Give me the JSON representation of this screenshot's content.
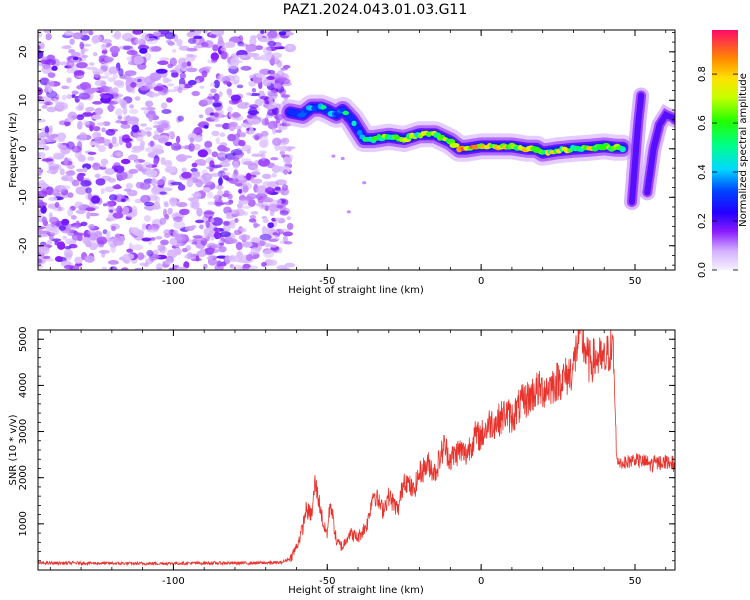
{
  "title": "PAZ1.2024.043.01.03.G11",
  "colors": {
    "snr_line": "#e8332d",
    "colormap": [
      "#f2f2ff",
      "#d8b6ff",
      "#a44dff",
      "#7000ff",
      "#0000ff",
      "#00e5ff",
      "#00ff33",
      "#ffff00",
      "#ff7f00",
      "#ff0066"
    ]
  },
  "chart_data": [
    {
      "type": "heatmap",
      "title": "",
      "xlabel": "Height of straight line (km)",
      "ylabel": "Frequency (Hz)",
      "xlim": [
        -144,
        63
      ],
      "ylim": [
        -25,
        24.5
      ],
      "x_ticks": [
        {
          "value": -100,
          "label": "-100"
        },
        {
          "value": -50,
          "label": "-50"
        },
        {
          "value": 0,
          "label": "0"
        },
        {
          "value": 50,
          "label": "50"
        }
      ],
      "y_ticks": [
        {
          "value": -20,
          "label": "-20"
        },
        {
          "value": -10,
          "label": "-10"
        },
        {
          "value": 0,
          "label": "0"
        },
        {
          "value": 10,
          "label": "10"
        },
        {
          "value": 20,
          "label": "20"
        }
      ],
      "colorbar": {
        "label": "Normalized spectral amplitude",
        "range": [
          0,
          0.98
        ],
        "ticks": [
          {
            "value": 0.0,
            "label": "0.0"
          },
          {
            "value": 0.2,
            "label": "0.2"
          },
          {
            "value": 0.4,
            "label": "0.4"
          },
          {
            "value": 0.6,
            "label": "0.6"
          },
          {
            "value": 0.8,
            "label": "0.8"
          }
        ]
      },
      "noise_region": {
        "x_range": [
          -144,
          -62
        ],
        "y_range": [
          -25,
          24.5
        ]
      },
      "ridge": {
        "x": [
          -62,
          -58,
          -55,
          -52,
          -50,
          -47,
          -45,
          -42,
          -40,
          -38,
          -35,
          -30,
          -25,
          -20,
          -15,
          -10,
          -7,
          -5,
          0,
          5,
          10,
          15,
          18,
          20,
          25,
          30,
          35,
          40,
          44,
          46
        ],
        "y": [
          7.5,
          7,
          8.5,
          8.5,
          8,
          7,
          8,
          6,
          4,
          2,
          2,
          2.5,
          2,
          3,
          3,
          1.5,
          0,
          0,
          0.5,
          0.5,
          0.5,
          0,
          0,
          -0.8,
          -0.3,
          0,
          0.2,
          0.5,
          0.2,
          0.2
        ],
        "amplitude": [
          0.3,
          0.4,
          0.55,
          0.6,
          0.55,
          0.5,
          0.6,
          0.55,
          0.5,
          0.7,
          0.75,
          0.75,
          0.8,
          0.75,
          0.8,
          0.8,
          0.95,
          0.95,
          0.92,
          0.9,
          0.95,
          0.85,
          0.9,
          0.8,
          0.85,
          0.8,
          0.85,
          0.9,
          0.8,
          0.7
        ]
      },
      "secondary_ridges": [
        {
          "x": [
            49,
            50,
            51,
            52
          ],
          "y": [
            -11,
            -3,
            5,
            11
          ]
        },
        {
          "x": [
            54,
            56,
            58,
            60,
            62,
            63
          ],
          "y": [
            -9,
            0,
            5,
            7,
            6.5,
            6
          ]
        }
      ]
    },
    {
      "type": "line",
      "title": "",
      "xlabel": "Height of straight line (km)",
      "ylabel": "SNR (10 * v/v)",
      "xlim": [
        -144,
        63
      ],
      "ylim": [
        0,
        5200
      ],
      "x_ticks": [
        {
          "value": -100,
          "label": "-100"
        },
        {
          "value": -50,
          "label": "-50"
        },
        {
          "value": 0,
          "label": "0"
        },
        {
          "value": 50,
          "label": "50"
        }
      ],
      "y_ticks": [
        {
          "value": 1000,
          "label": "1000"
        },
        {
          "value": 2000,
          "label": "2000"
        },
        {
          "value": 3000,
          "label": "3000"
        },
        {
          "value": 4000,
          "label": "4000"
        },
        {
          "value": 5000,
          "label": "5000"
        }
      ],
      "series": [
        {
          "x": [
            -144,
            -130,
            -110,
            -90,
            -75,
            -65,
            -62,
            -60,
            -58,
            -57,
            -55,
            -54,
            -53,
            -51,
            -50,
            -49,
            -47,
            -45,
            -43,
            -40,
            -37,
            -35,
            -32,
            -30,
            -27,
            -25,
            -22,
            -20,
            -17,
            -15,
            -12,
            -10,
            -7,
            -5,
            -2,
            0,
            3,
            5,
            8,
            10,
            13,
            15,
            18,
            20,
            23,
            25,
            28,
            30,
            32,
            35,
            38,
            40,
            42,
            43,
            44,
            46,
            50,
            55,
            60,
            63
          ],
          "y": [
            150,
            150,
            140,
            150,
            150,
            160,
            250,
            500,
            900,
            1300,
            1200,
            1900,
            1600,
            900,
            800,
            1500,
            600,
            500,
            800,
            700,
            1000,
            1700,
            1300,
            1600,
            1300,
            2000,
            1700,
            2100,
            2300,
            2100,
            2700,
            2400,
            2600,
            2500,
            2900,
            2900,
            3200,
            3200,
            3400,
            3300,
            3600,
            3700,
            3900,
            3900,
            4000,
            4100,
            4200,
            4400,
            5200,
            4500,
            4600,
            4500,
            4800,
            4700,
            2400,
            2300,
            2400,
            2300,
            2350,
            2300
          ]
        }
      ]
    }
  ]
}
